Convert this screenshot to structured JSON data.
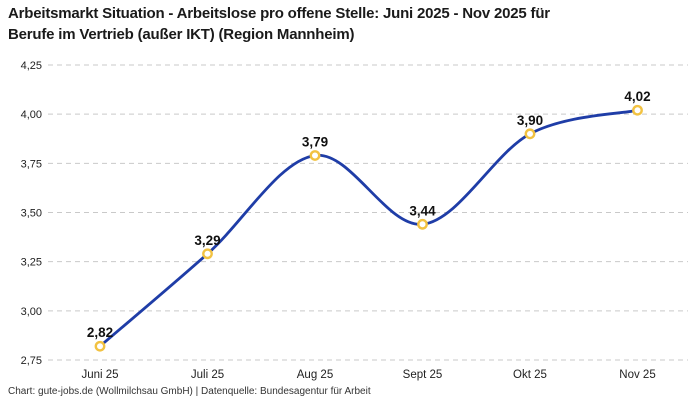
{
  "title": {
    "line1": "Arbeitsmarkt Situation - Arbeitslose pro offene Stelle: Juni 2025 - Nov 2025 für",
    "line2": "Berufe im Vertrieb (außer IKT) (Region Mannheim)"
  },
  "footer": "Chart: gute-jobs.de (Wollmilchsau GmbH) | Datenquelle: Bundesagentur für Arbeit",
  "chart_data": {
    "type": "line",
    "title": "Arbeitsmarkt Situation - Arbeitslose pro offene Stelle: Juni 2025 - Nov 2025 für Berufe im Vertrieb (außer IKT) (Region Mannheim)",
    "categories": [
      "Juni 25",
      "Juli 25",
      "Aug 25",
      "Sept 25",
      "Okt 25",
      "Nov 25"
    ],
    "values": [
      2.82,
      3.29,
      3.79,
      3.44,
      3.9,
      4.02
    ],
    "point_labels": [
      "2,82",
      "3,29",
      "3,79",
      "3,44",
      "3,90",
      "4,02"
    ],
    "y_ticks": [
      2.75,
      3.0,
      3.25,
      3.5,
      3.75,
      4.0,
      4.25
    ],
    "y_tick_labels": [
      "2,75",
      "3,00",
      "3,25",
      "3,50",
      "3,75",
      "4,00",
      "4,25"
    ],
    "ylim": [
      2.75,
      4.25
    ],
    "xlabel": "",
    "ylabel": "",
    "grid": "dashed-horizontal",
    "legend": "none",
    "line_smoothing": "spline",
    "colors": {
      "line": "#1f3da7",
      "marker_ring": "#f2c241",
      "marker_fill": "#ffffff",
      "gridline": "#c9c9c9",
      "point_label": "#111111",
      "tick_label": "#222222"
    }
  }
}
